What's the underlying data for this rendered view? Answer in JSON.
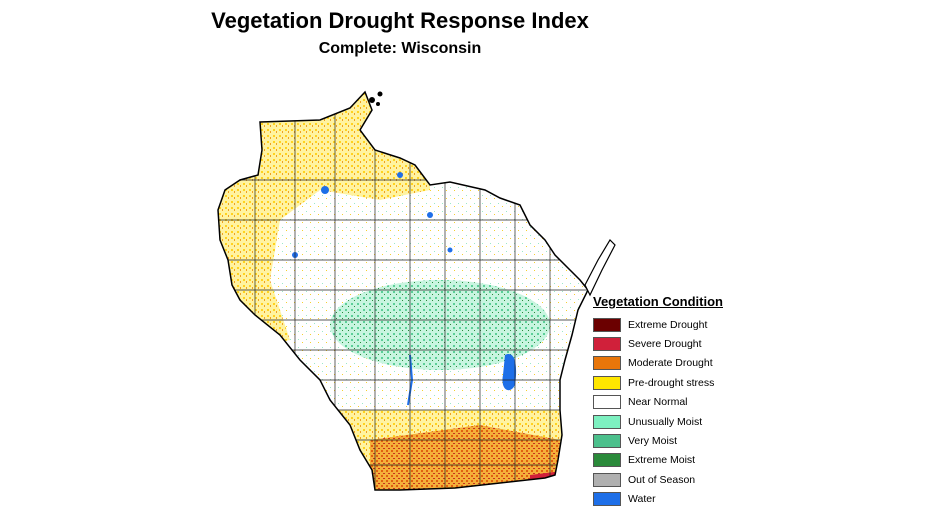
{
  "title": "Vegetation Drought Response Index",
  "subtitle": "Complete: Wisconsin",
  "legend": {
    "title": "Vegetation Condition",
    "items": [
      {
        "label": "Extreme Drought",
        "color": "#6b0000"
      },
      {
        "label": "Severe Drought",
        "color": "#d0203a"
      },
      {
        "label": "Moderate Drought",
        "color": "#e8760a"
      },
      {
        "label": "Pre-drought stress",
        "color": "#ffe600"
      },
      {
        "label": "Near Normal",
        "color": "#ffffff"
      },
      {
        "label": "Unusually Moist",
        "color": "#7df0c0"
      },
      {
        "label": "Very Moist",
        "color": "#4cc08c"
      },
      {
        "label": "Extreme Moist",
        "color": "#2a8a3a"
      },
      {
        "label": "Out of Season",
        "color": "#b0b0b0"
      },
      {
        "label": "Water",
        "color": "#1e6fe8"
      }
    ]
  }
}
